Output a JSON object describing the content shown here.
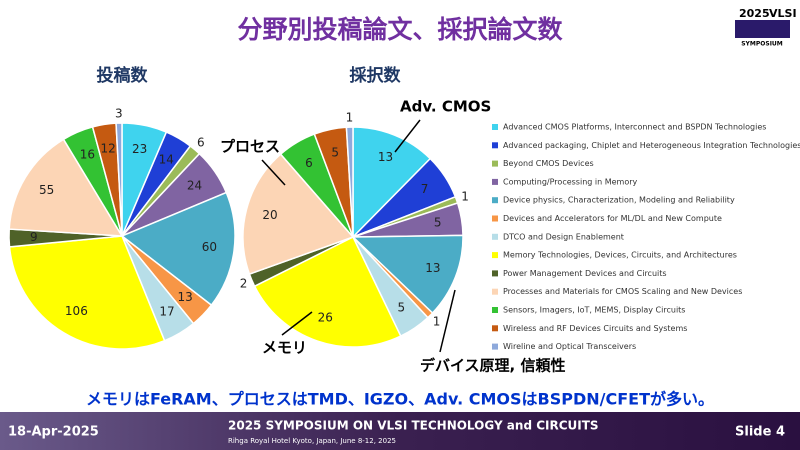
{
  "slide": {
    "title": "分野別投稿論文、採択論文数",
    "logo_year": "2025",
    "logo_vlsi": "VLSI",
    "logo_symposium": "SYMPOSIUM",
    "annotations": [
      "Adv. CMOS",
      "プロセス",
      "メモリ",
      "デバイス原理, 信頼性"
    ],
    "summary": "メモリはFeRAM、プロセスはTMD、IGZO、Adv. CMOSはBSPDN/CFETが多い。",
    "footer_date": "18-Apr-2025",
    "footer_title": "2025 SYMPOSIUM ON VLSI TECHNOLOGY and CIRCUITS",
    "footer_venue": "Rihga Royal Hotel Kyoto, Japan, June 8-12, 2025",
    "footer_slide": "Slide 4"
  },
  "chart_data": [
    {
      "type": "pie",
      "title": "投稿数",
      "categories": [
        "Advanced CMOS Platforms, Interconnect and BSPDN Technologies",
        "Advanced packaging, Chiplet and Heterogeneous Integration Technologies",
        "Beyond CMOS Devices",
        "Computing/Processing in Memory",
        "Device physics, Characterization, Modeling and Reliability",
        "Devices and Accelerators for ML/DL and New Compute",
        "DTCO and Design Enablement",
        "Memory Technologies, Devices, Circuits, and Architectures",
        "Power Management Devices and Circuits",
        "Processes and Materials for CMOS Scaling and New Devices",
        "Sensors, Imagers, IoT, MEMS, Display Circuits",
        "Wireless and RF Devices Circuits and Systems",
        "Wireline and Optical Transceivers"
      ],
      "colors": [
        "#3fd3ee",
        "#1f3fd6",
        "#9bbb59",
        "#8064a2",
        "#4bacc6",
        "#f79646",
        "#b7dee8",
        "#ffff00",
        "#4f6228",
        "#fcd5b5",
        "#33c233",
        "#c55a11",
        "#8ea9db"
      ],
      "values": [
        23,
        14,
        6,
        24,
        60,
        13,
        17,
        106,
        9,
        55,
        16,
        12,
        3
      ]
    },
    {
      "type": "pie",
      "title": "採択数",
      "values": [
        13,
        7,
        1,
        5,
        13,
        1,
        5,
        26,
        2,
        20,
        6,
        5,
        1
      ]
    }
  ]
}
